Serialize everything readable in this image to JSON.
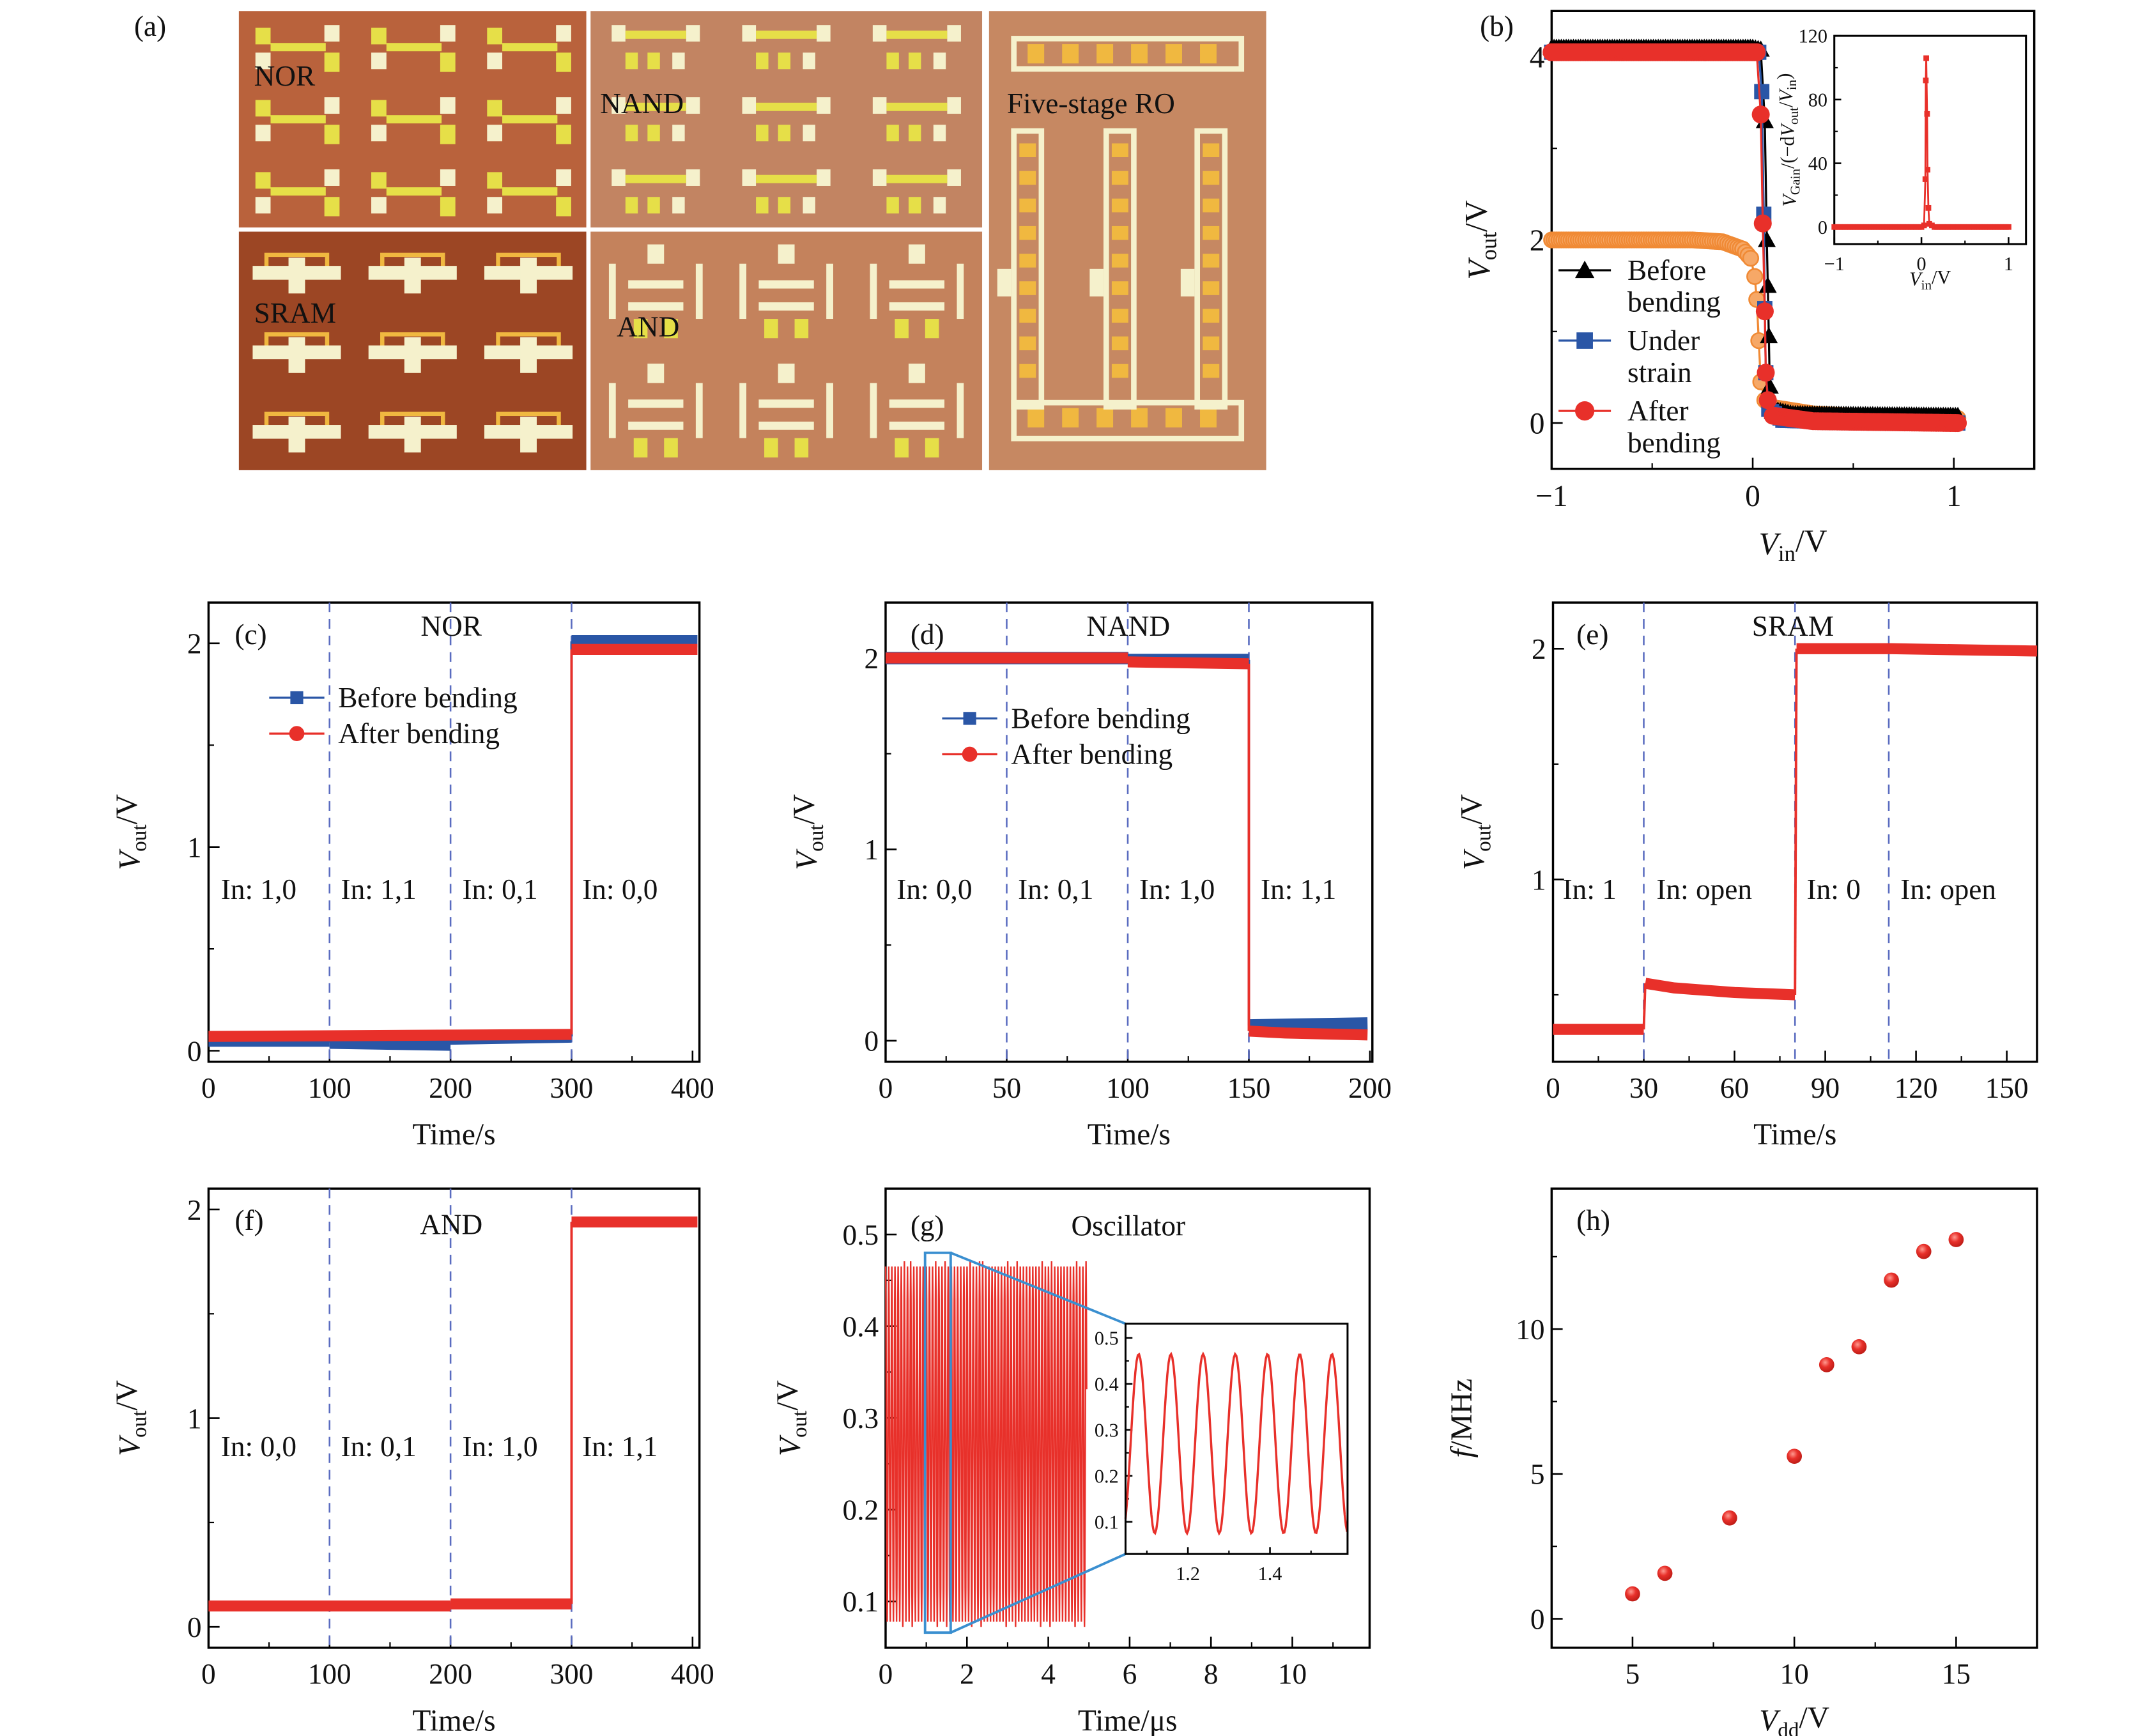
{
  "figure": {
    "panel_labels": {
      "a": "(a)",
      "b": "(b)",
      "c": "(c)",
      "d": "(d)",
      "e": "(e)",
      "f": "(f)",
      "g": "(g)",
      "h": "(h)"
    }
  },
  "micrograph": {
    "labels": {
      "nor": "NOR",
      "nand": "NAND",
      "sram": "SRAM",
      "and": "AND",
      "ro": "Five-stage RO"
    },
    "colors": {
      "nor": "#b9623c",
      "nand": "#c28462",
      "sram": "#9c4624",
      "and": "#c4825c",
      "ro": "#c68862",
      "pad_yellow": "#e6df48",
      "pad_white": "#f5f1cc",
      "trace": "#f0b840"
    }
  },
  "chart_data": [
    {
      "id": "b",
      "type": "line",
      "panel": "(b)",
      "xlim": [
        -1,
        1.4
      ],
      "ylim": [
        -0.5,
        4.5
      ],
      "xticks": [
        -1,
        0,
        1
      ],
      "xminor": [
        -0.5,
        0.5
      ],
      "yticks": [
        0,
        2,
        4
      ],
      "yminor": [
        1,
        3
      ],
      "xlabel": [
        {
          "t": "V",
          "i": true
        },
        {
          "t": "in",
          "sub": true
        },
        {
          "t": "/V"
        }
      ],
      "ylabel": [
        {
          "t": "V",
          "i": true
        },
        {
          "t": "out",
          "sub": true
        },
        {
          "t": "/V"
        }
      ],
      "series": [
        {
          "color": "#f08a35",
          "marker": "circle-light",
          "points": [
            [
              -1,
              2.0
            ],
            [
              -0.3,
              2.0
            ],
            [
              -0.15,
              1.98
            ],
            [
              -0.05,
              1.9
            ],
            [
              -0.01,
              1.8
            ],
            [
              0.01,
              1.6
            ],
            [
              0.02,
              1.35
            ],
            [
              0.03,
              0.9
            ],
            [
              0.04,
              0.45
            ],
            [
              0.06,
              0.25
            ],
            [
              0.1,
              0.17
            ],
            [
              0.3,
              0.1
            ],
            [
              0.6,
              0.06
            ],
            [
              1.02,
              0.05
            ]
          ]
        },
        {
          "name_lines": [
            "Before",
            "bending"
          ],
          "color": "#000000",
          "marker": "triangle",
          "points": [
            [
              -1,
              4.1
            ],
            [
              0,
              4.1
            ],
            [
              0.04,
              4.08
            ],
            [
              0.06,
              3.3
            ],
            [
              0.07,
              2.0
            ],
            [
              0.075,
              1.5
            ],
            [
              0.08,
              0.95
            ],
            [
              0.085,
              0.4
            ],
            [
              0.1,
              0.15
            ],
            [
              0.2,
              0.1
            ],
            [
              0.5,
              0.09
            ],
            [
              1.02,
              0.08
            ]
          ]
        },
        {
          "name_lines": [
            "Under",
            "strain"
          ],
          "color": "#2a56a6",
          "marker": "square",
          "points": [
            [
              -1,
              4.05
            ],
            [
              0.03,
              4.05
            ],
            [
              0.045,
              3.62
            ],
            [
              0.055,
              2.28
            ],
            [
              0.06,
              1.25
            ],
            [
              0.065,
              0.55
            ],
            [
              0.08,
              0.15
            ],
            [
              0.15,
              0.03
            ],
            [
              0.5,
              0.01
            ],
            [
              1.02,
              0.0
            ]
          ]
        },
        {
          "name_lines": [
            "After",
            "bending"
          ],
          "color": "#e8302a",
          "marker": "circle",
          "points": [
            [
              -1,
              4.05
            ],
            [
              0.02,
              4.05
            ],
            [
              0.04,
              3.37
            ],
            [
              0.05,
              2.18
            ],
            [
              0.06,
              1.22
            ],
            [
              0.065,
              0.55
            ],
            [
              0.075,
              0.25
            ],
            [
              0.1,
              0.08
            ],
            [
              0.3,
              0.02
            ],
            [
              1.02,
              0.0
            ]
          ]
        }
      ]
    },
    {
      "id": "b-inset",
      "type": "line",
      "xlim": [
        -1,
        1.2
      ],
      "ylim": [
        -10.7,
        120
      ],
      "xticks": [
        -1,
        0,
        1
      ],
      "xminor": [
        -0.5,
        0.5
      ],
      "yticks": [
        0,
        40,
        80,
        120
      ],
      "yminor": [
        20,
        60,
        100
      ],
      "xlabel": [
        {
          "t": "V",
          "i": true
        },
        {
          "t": "in",
          "sub": true
        },
        {
          "t": "/V"
        }
      ],
      "ylabel": [
        {
          "t": "V",
          "i": true
        },
        {
          "t": "Gain",
          "sub": true
        },
        {
          "t": "/(−d"
        },
        {
          "t": "V",
          "i": true
        },
        {
          "t": "out",
          "sub": true
        },
        {
          "t": "/"
        },
        {
          "t": "V",
          "i": true
        },
        {
          "t": "in",
          "sub": true
        },
        {
          "t": ")"
        }
      ],
      "series": [
        {
          "color": "#e8302a",
          "marker": "square",
          "points": [
            [
              -1,
              0
            ],
            [
              0,
              0
            ],
            [
              0.03,
              1
            ],
            [
              0.045,
              30
            ],
            [
              0.05,
              92
            ],
            [
              0.055,
              106
            ],
            [
              0.065,
              71
            ],
            [
              0.07,
              36
            ],
            [
              0.08,
              12
            ],
            [
              0.09,
              2
            ],
            [
              0.15,
              0
            ],
            [
              1,
              0
            ]
          ]
        }
      ]
    },
    {
      "id": "c",
      "type": "line",
      "panel": "(c)",
      "title": "NOR",
      "xlim": [
        0,
        405.7
      ],
      "ylim": [
        -0.054,
        2.2
      ],
      "xticks": [
        0,
        100,
        200,
        300,
        400
      ],
      "xminor": [
        50,
        150,
        250,
        350
      ],
      "yticks": [
        0,
        1,
        2
      ],
      "yminor": [
        0.5,
        1.5
      ],
      "xlabel": [
        {
          "t": "Time/s"
        }
      ],
      "ylabel": [
        {
          "t": "V",
          "i": true
        },
        {
          "t": "out",
          "sub": true
        },
        {
          "t": "/V"
        }
      ],
      "vlines": [
        100,
        200,
        300
      ],
      "annotations": [
        "In: 1,0",
        "In: 1,1",
        "In: 0,1",
        "In: 0,0"
      ],
      "series": [
        {
          "name": "Before bending",
          "color": "#2a56a6",
          "marker": "square",
          "segments": [
            [
              [
                0,
                0.05
              ],
              [
                100,
                0.05
              ]
            ],
            [
              [
                100,
                0.04
              ],
              [
                200,
                0.03
              ]
            ],
            [
              [
                200,
                0.06
              ],
              [
                300,
                0.07
              ]
            ],
            [
              [
                300,
                2.01
              ],
              [
                404,
                2.01
              ]
            ]
          ]
        },
        {
          "name": "After bending",
          "color": "#e8302a",
          "marker": "circle",
          "segments": [
            [
              [
                0,
                0.07
              ],
              [
                300,
                0.08
              ]
            ],
            [
              [
                300,
                1.97
              ],
              [
                404,
                1.97
              ]
            ]
          ]
        }
      ]
    },
    {
      "id": "d",
      "type": "line",
      "panel": "(d)",
      "title": "NAND",
      "xlim": [
        0,
        201
      ],
      "ylim": [
        -0.11,
        2.29
      ],
      "xticks": [
        0,
        50,
        100,
        150,
        200
      ],
      "xminor": [
        25,
        75,
        125,
        175
      ],
      "yticks": [
        0,
        1,
        2
      ],
      "yminor": [
        0.5,
        1.5
      ],
      "xlabel": [
        {
          "t": "Time/s"
        }
      ],
      "ylabel": [
        {
          "t": "V",
          "i": true
        },
        {
          "t": "out",
          "sub": true
        },
        {
          "t": "/V"
        }
      ],
      "vlines": [
        50,
        100,
        150
      ],
      "annotations": [
        "In: 0,0",
        "In: 0,1",
        "In: 1,0",
        "In: 1,1"
      ],
      "series": [
        {
          "name": "Before bending",
          "color": "#2a56a6",
          "marker": "square",
          "segments": [
            [
              [
                0,
                2.0
              ],
              [
                100,
                2.0
              ]
            ],
            [
              [
                100,
                1.99
              ],
              [
                150,
                1.99
              ]
            ],
            [
              [
                150,
                0.08
              ],
              [
                199,
                0.09
              ]
            ]
          ]
        },
        {
          "name": "After bending",
          "color": "#e8302a",
          "marker": "circle",
          "segments": [
            [
              [
                0,
                2.0
              ],
              [
                100,
                2.0
              ]
            ],
            [
              [
                100,
                1.98
              ],
              [
                150,
                1.97
              ]
            ],
            [
              [
                150,
                0.05
              ],
              [
                165,
                0.04
              ],
              [
                199,
                0.03
              ]
            ]
          ]
        }
      ]
    },
    {
      "id": "e",
      "type": "line",
      "panel": "(e)",
      "title": "SRAM",
      "xlim": [
        0,
        160
      ],
      "ylim": [
        0.21,
        2.2
      ],
      "xticks": [
        0,
        30,
        60,
        90,
        120,
        150
      ],
      "xminor": [
        15,
        45,
        75,
        105,
        135
      ],
      "yticks": [
        1,
        2
      ],
      "yminor": [
        0.5,
        1.5
      ],
      "xlabel": [
        {
          "t": "Time/s"
        }
      ],
      "ylabel": [
        {
          "t": "V",
          "i": true
        },
        {
          "t": "out",
          "sub": true
        },
        {
          "t": "/V"
        }
      ],
      "vlines": [
        30,
        80,
        111
      ],
      "annotations": [
        "In: 1",
        "In: open",
        "In: 0",
        "In: open"
      ],
      "series": [
        {
          "color": "#e8302a",
          "marker": "circle",
          "segments": [
            [
              [
                0,
                0.35
              ],
              [
                30,
                0.35
              ]
            ],
            [
              [
                30.5,
                0.55
              ],
              [
                40,
                0.53
              ],
              [
                60,
                0.51
              ],
              [
                80,
                0.5
              ]
            ],
            [
              [
                80.5,
                2.0
              ],
              [
                112,
                2.0
              ],
              [
                160,
                1.99
              ]
            ]
          ]
        }
      ]
    },
    {
      "id": "f",
      "type": "line",
      "panel": "(f)",
      "title": "AND",
      "xlim": [
        0,
        405.7
      ],
      "ylim": [
        -0.1,
        2.1
      ],
      "xticks": [
        0,
        100,
        200,
        300,
        400
      ],
      "xminor": [
        50,
        150,
        250,
        350
      ],
      "yticks": [
        0,
        1,
        2
      ],
      "yminor": [
        0.5,
        1.5
      ],
      "xlabel": [
        {
          "t": "Time/s"
        }
      ],
      "ylabel": [
        {
          "t": "V",
          "i": true
        },
        {
          "t": "out",
          "sub": true
        },
        {
          "t": "/V"
        }
      ],
      "vlines": [
        100,
        200,
        300
      ],
      "annotations": [
        "In: 0,0",
        "In: 0,1",
        "In: 1,0",
        "In: 1,1"
      ],
      "series": [
        {
          "color": "#e8302a",
          "marker": "circle",
          "segments": [
            [
              [
                0,
                0.1
              ],
              [
                200,
                0.1
              ]
            ],
            [
              [
                200,
                0.11
              ],
              [
                300,
                0.11
              ]
            ],
            [
              [
                300,
                1.94
              ],
              [
                404,
                1.94
              ]
            ]
          ]
        }
      ]
    },
    {
      "id": "g",
      "type": "line",
      "panel": "(g)",
      "title": "Oscillator",
      "xlim": [
        0,
        11.9
      ],
      "ylim": [
        0.0495,
        0.55
      ],
      "xticks": [
        0,
        2,
        4,
        6,
        8,
        10
      ],
      "xminor": [
        1,
        3,
        5,
        7,
        9,
        11
      ],
      "yticks": [
        0.1,
        0.2,
        0.3,
        0.4,
        0.5
      ],
      "yminor": [
        0.15,
        0.25,
        0.35,
        0.45
      ],
      "xlabel": [
        {
          "t": "Time/μs"
        }
      ],
      "ylabel": [
        {
          "t": "V",
          "i": true
        },
        {
          "t": "out",
          "sub": true
        },
        {
          "t": "/V"
        }
      ],
      "signal": {
        "t_start": 0,
        "t_end": 4.95,
        "v_min": 0.078,
        "v_max": 0.465,
        "period_us": 0.077,
        "color": "#e8302a"
      },
      "zoom_window": {
        "x": [
          0.97,
          1.6
        ],
        "y": [
          0.066,
          0.48
        ],
        "color": "#3a8fd0"
      }
    },
    {
      "id": "g-inset",
      "type": "line",
      "xlim": [
        1.048,
        1.589
      ],
      "ylim": [
        0.03,
        0.531
      ],
      "xticks": [
        1.2,
        1.4
      ],
      "xminor": [
        1.1,
        1.3,
        1.5
      ],
      "yticks": [
        0.1,
        0.2,
        0.3,
        0.4,
        0.5
      ],
      "yminor": [
        0.15,
        0.25,
        0.35,
        0.45
      ],
      "signal": {
        "t_start": 1.048,
        "t_end": 1.589,
        "v_min": 0.075,
        "v_max": 0.465,
        "first_peak_us": 1.08,
        "period_us": 0.0785,
        "color": "#e8302a"
      }
    },
    {
      "id": "h",
      "type": "scatter",
      "panel": "(h)",
      "xlim": [
        2.5,
        17.5
      ],
      "ylim": [
        -1.0,
        14.85
      ],
      "xticks": [
        5,
        10,
        15
      ],
      "xminor": [
        7.5,
        12.5
      ],
      "yticks": [
        0,
        5,
        10
      ],
      "yminor": [
        2.5,
        7.5,
        12.5
      ],
      "xlabel": [
        {
          "t": "V",
          "i": true
        },
        {
          "t": "dd",
          "sub": true
        },
        {
          "t": "/V"
        }
      ],
      "ylabel": [
        {
          "t": "f",
          "i": true
        },
        {
          "t": "/MHz"
        }
      ],
      "series": [
        {
          "color": "#e8302a",
          "marker": "circle",
          "points": [
            [
              5,
              0.86
            ],
            [
              6,
              1.57
            ],
            [
              8,
              3.48
            ],
            [
              10,
              5.61
            ],
            [
              11,
              8.77
            ],
            [
              12,
              9.39
            ],
            [
              13,
              11.69
            ],
            [
              14,
              12.68
            ],
            [
              15,
              13.09
            ]
          ]
        }
      ]
    }
  ]
}
